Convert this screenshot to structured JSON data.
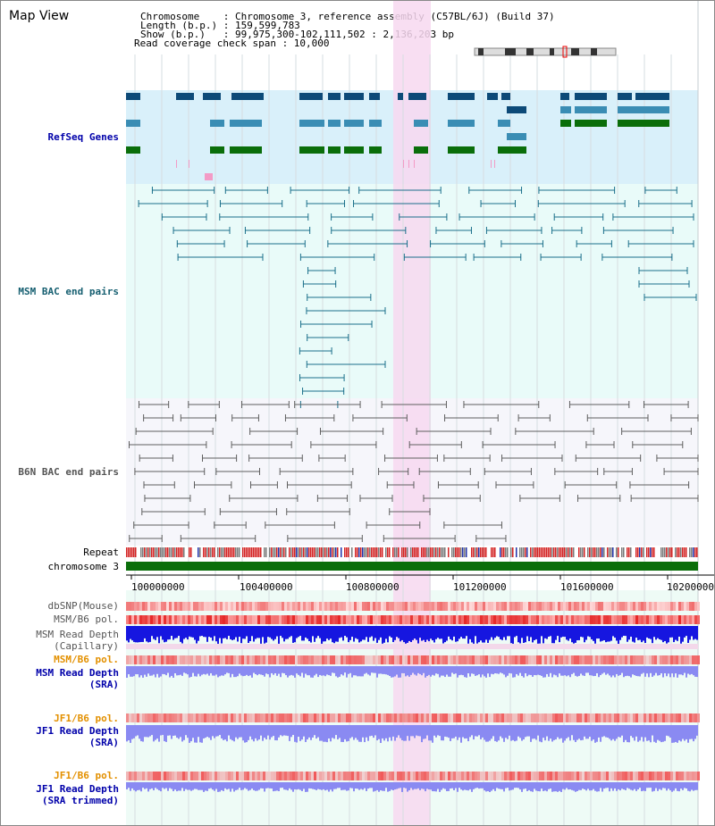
{
  "view": {
    "title": "Map View",
    "info_lines": [
      "Chromosome    : Chromosome 3, reference assembly (C57BL/6J) (Build 37)",
      "Length (b.p.) : 159,599,783",
      "Show (b.p.)   : 99,975,300-102,111,502 : 2,136,203 bp",
      "Read coverage check span : 10,000"
    ]
  },
  "tracks": {
    "refseq": "RefSeq Genes",
    "msm_bac": "MSM BAC end pairs",
    "b6n_bac": "B6N BAC end pairs",
    "repeat": "Repeat",
    "chromosome": "chromosome 3",
    "dbsnp": "dbSNP(Mouse)",
    "msm_b6_pol": "MSM/B6 pol.",
    "msm_depth_cap": "MSM Read Depth\n(Capillary)",
    "msm_b6_pol2": "MSM/B6 pol.",
    "msm_depth_sra": "MSM Read Depth\n(SRA)",
    "jf1_b6_pol": "JF1/B6 pol.",
    "jf1_depth_sra": "JF1 Read Depth\n(SRA)",
    "jf1_b6_pol2": "JF1/B6 pol.",
    "jf1_depth_trim": "JF1 Read Depth\n(SRA trimmed)"
  },
  "axis": {
    "ticks": [
      "100000000",
      "100400000",
      "100800000",
      "101200000",
      "101600000",
      "102000000"
    ]
  },
  "colors": {
    "highlight": "#f7d8f0",
    "refseq_bg": "#d9f0fa",
    "msm_bg": "#e9fbf9",
    "b6n_bg": "#f6f6fb",
    "gene_dark": "#0d4a78",
    "gene_mid": "#3a8db4",
    "gene_green": "#0a6e0a",
    "chromosome": "#0a6e0a",
    "depth_blue": "#1616e0",
    "depth_light": "#8a8af2"
  }
}
